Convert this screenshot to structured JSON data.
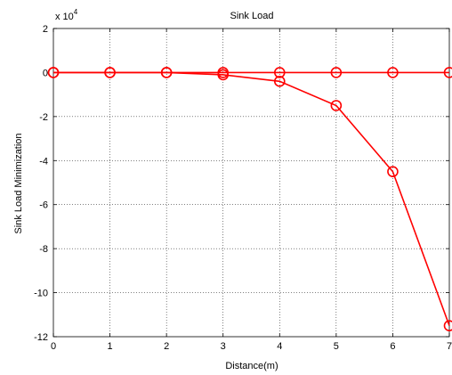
{
  "chart_data": {
    "type": "line",
    "title": "Sink Load",
    "xlabel": "Distance(m)",
    "ylabel": "Sink Load Minimization",
    "multiplier_label": "x 10",
    "multiplier_exponent": "4",
    "xlim": [
      0,
      7
    ],
    "ylim": [
      -12,
      2
    ],
    "xticks": [
      "0",
      "1",
      "2",
      "3",
      "4",
      "5",
      "6",
      "7"
    ],
    "yticks": [
      "2",
      "0",
      "-2",
      "-4",
      "-6",
      "-8",
      "-10",
      "-12"
    ],
    "grid": true,
    "colors": {
      "series": "#ff0000",
      "axes": "#000000",
      "background": "#ffffff"
    },
    "series": [
      {
        "x": [
          0,
          1,
          2,
          3,
          4,
          5,
          6,
          7
        ],
        "y": [
          0,
          0,
          0,
          0,
          0,
          0,
          0,
          0
        ]
      },
      {
        "x": [
          0,
          1,
          2,
          3,
          4,
          5,
          6,
          7
        ],
        "y": [
          0,
          0,
          0,
          -0.1,
          -0.4,
          -1.5,
          -4.5,
          -11.5
        ]
      }
    ]
  }
}
